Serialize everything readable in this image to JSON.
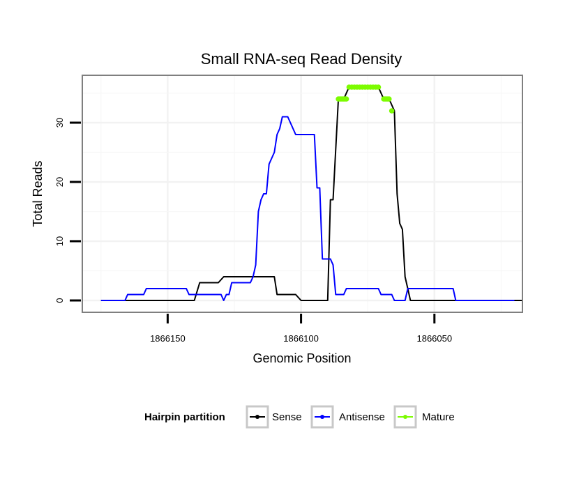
{
  "chart_data": {
    "type": "line",
    "title": "Small RNA-seq Read Density",
    "xlabel": "Genomic Position",
    "ylabel": "Total Reads",
    "x_reversed": true,
    "xlim": [
      1866182,
      1866017
    ],
    "ylim": [
      -2,
      38
    ],
    "xticks": [
      1866150,
      1866100,
      1866050
    ],
    "xtick_labels": [
      "1866150",
      "1866100",
      "1866050"
    ],
    "yticks": [
      0,
      10,
      20,
      30
    ],
    "ytick_labels": [
      "0",
      "10",
      "20",
      "30"
    ],
    "grid": true,
    "legend": {
      "title": "Hairpin partition",
      "placement": "bottom"
    },
    "series": [
      {
        "name": "Sense",
        "color": "#000000",
        "style": "line",
        "points": [
          [
            1866175,
            0
          ],
          [
            1866140,
            0
          ],
          [
            1866138,
            3
          ],
          [
            1866131,
            3
          ],
          [
            1866129,
            4
          ],
          [
            1866114,
            4
          ],
          [
            1866112,
            4
          ],
          [
            1866110,
            4
          ],
          [
            1866109,
            1
          ],
          [
            1866102,
            1
          ],
          [
            1866100,
            0
          ],
          [
            1866090,
            0
          ],
          [
            1866089,
            17
          ],
          [
            1866088,
            17
          ],
          [
            1866086,
            34
          ],
          [
            1866084,
            34
          ],
          [
            1866082,
            36
          ],
          [
            1866071,
            36
          ],
          [
            1866069,
            34
          ],
          [
            1866067,
            34
          ],
          [
            1866065,
            32
          ],
          [
            1866064,
            18
          ],
          [
            1866063,
            13
          ],
          [
            1866062,
            12
          ],
          [
            1866061,
            4
          ],
          [
            1866060,
            2
          ],
          [
            1866059,
            0
          ],
          [
            1866017,
            0
          ]
        ]
      },
      {
        "name": "Antisense",
        "color": "#0000ff",
        "style": "line",
        "points": [
          [
            1866175,
            0
          ],
          [
            1866166,
            0
          ],
          [
            1866165,
            1
          ],
          [
            1866159,
            1
          ],
          [
            1866158,
            2
          ],
          [
            1866143,
            2
          ],
          [
            1866142,
            1
          ],
          [
            1866130,
            1
          ],
          [
            1866129,
            0
          ],
          [
            1866128,
            1
          ],
          [
            1866127,
            1
          ],
          [
            1866126,
            3
          ],
          [
            1866119,
            3
          ],
          [
            1866118,
            4
          ],
          [
            1866117,
            6
          ],
          [
            1866116,
            15
          ],
          [
            1866115,
            17
          ],
          [
            1866114,
            18
          ],
          [
            1866113,
            18
          ],
          [
            1866112,
            23
          ],
          [
            1866110,
            25
          ],
          [
            1866109,
            28
          ],
          [
            1866108,
            29
          ],
          [
            1866107,
            31
          ],
          [
            1866105,
            31
          ],
          [
            1866103,
            29
          ],
          [
            1866102,
            28
          ],
          [
            1866095,
            28
          ],
          [
            1866094,
            19
          ],
          [
            1866093,
            19
          ],
          [
            1866092,
            7
          ],
          [
            1866089,
            7
          ],
          [
            1866088,
            6
          ],
          [
            1866087,
            1
          ],
          [
            1866084,
            1
          ],
          [
            1866083,
            2
          ],
          [
            1866071,
            2
          ],
          [
            1866070,
            1
          ],
          [
            1866066,
            1
          ],
          [
            1866065,
            0
          ],
          [
            1866061,
            0
          ],
          [
            1866060,
            2
          ],
          [
            1866043,
            2
          ],
          [
            1866042,
            0
          ],
          [
            1866020,
            0
          ]
        ]
      },
      {
        "name": "Mature",
        "color": "#7cfc00",
        "style": "points",
        "points": [
          [
            1866086,
            34
          ],
          [
            1866085.5,
            34
          ],
          [
            1866085,
            34
          ],
          [
            1866084.5,
            34
          ],
          [
            1866084,
            34
          ],
          [
            1866083.5,
            34
          ],
          [
            1866083,
            34
          ],
          [
            1866082,
            36
          ],
          [
            1866081,
            36
          ],
          [
            1866080,
            36
          ],
          [
            1866079,
            36
          ],
          [
            1866078,
            36
          ],
          [
            1866077,
            36
          ],
          [
            1866076,
            36
          ],
          [
            1866075,
            36
          ],
          [
            1866074,
            36
          ],
          [
            1866073,
            36
          ],
          [
            1866072,
            36
          ],
          [
            1866071,
            36
          ],
          [
            1866069,
            34
          ],
          [
            1866068.5,
            34
          ],
          [
            1866068,
            34
          ],
          [
            1866067.5,
            34
          ],
          [
            1866067,
            34
          ],
          [
            1866066,
            32
          ]
        ]
      }
    ]
  }
}
